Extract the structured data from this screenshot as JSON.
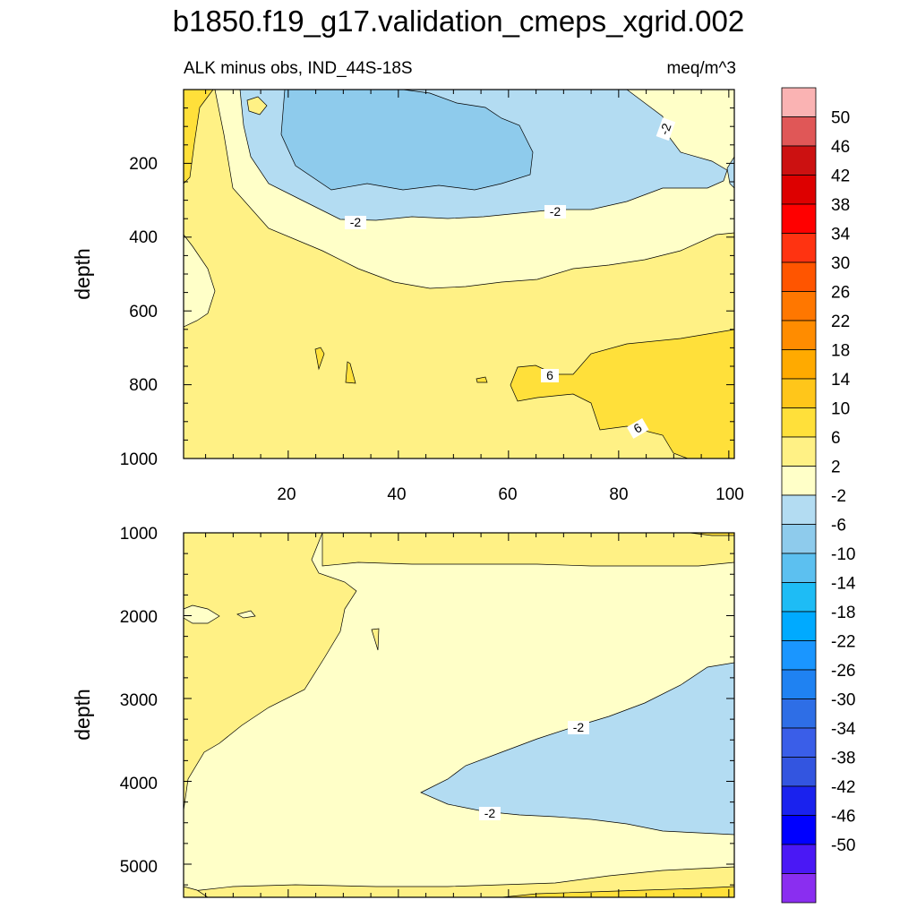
{
  "figure_title": "b1850.f19_g17.validation_cmeps_xgrid.002",
  "chart_data": [
    {
      "type": "contour",
      "panel": "top",
      "left_title": "ALK minus obs, IND_44S-18S",
      "right_title": "meq/m^3",
      "ylabel": "depth",
      "xlim": [
        1,
        101
      ],
      "ylim": [
        0,
        1000
      ],
      "xticks": [
        20,
        40,
        60,
        80,
        100
      ],
      "xtick_labels": [
        "20",
        "40",
        "60",
        "80",
        "100"
      ],
      "yticks": [
        200,
        400,
        600,
        800,
        1000
      ],
      "ytick_labels": [
        "200",
        "400",
        "600",
        "800",
        "1000"
      ],
      "contour_labels": [
        "-2",
        "-2",
        "-2",
        "6",
        "6"
      ]
    },
    {
      "type": "contour",
      "panel": "bottom",
      "ylabel": "depth",
      "xlim": [
        1,
        101
      ],
      "ylim": [
        1000,
        5400
      ],
      "yticks": [
        1000,
        2000,
        3000,
        4000,
        5000
      ],
      "ytick_labels": [
        "1000",
        "2000",
        "3000",
        "4000",
        "5000"
      ],
      "contour_labels": [
        "-2",
        "-2"
      ]
    }
  ],
  "colorbar": {
    "labels": [
      "50",
      "46",
      "42",
      "38",
      "34",
      "30",
      "26",
      "22",
      "18",
      "14",
      "10",
      "6",
      "2",
      "-2",
      "-6",
      "-10",
      "-14",
      "-18",
      "-22",
      "-26",
      "-30",
      "-34",
      "-38",
      "-42",
      "-46",
      "-50"
    ],
    "colors": [
      "#fab3b3",
      "#e05757",
      "#cc1111",
      "#dd0000",
      "#ff0000",
      "#ff3311",
      "#ff5500",
      "#ff7700",
      "#ff8c00",
      "#ffaa00",
      "#ffc61a",
      "#ffe03a",
      "#fff185",
      "#ffffc8",
      "#b3dcf2",
      "#8ecbec",
      "#5cc0f0",
      "#1ebcf5",
      "#00aaff",
      "#1a96ff",
      "#1f82f2",
      "#2e6ee6",
      "#3a5ee8",
      "#3355e0",
      "#1a22ee",
      "#0000ff",
      "#4a18f5",
      "#8a2ef0"
    ]
  }
}
